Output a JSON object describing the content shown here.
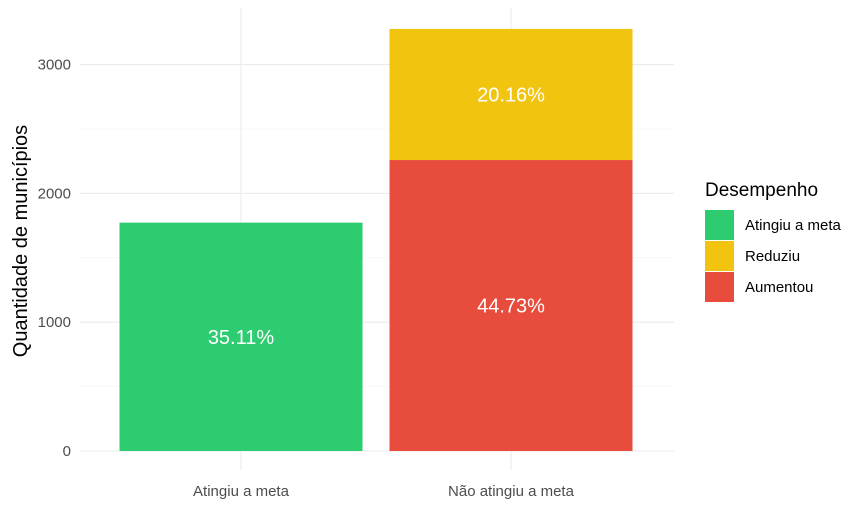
{
  "chart_data": {
    "type": "bar",
    "stacked": true,
    "categories": [
      "Atingiu a meta",
      "Não atingiu a meta"
    ],
    "series": [
      {
        "name": "Atingiu a meta",
        "color": "#2ECC71",
        "values": [
          1773,
          0
        ],
        "labels": [
          "35.11%",
          ""
        ]
      },
      {
        "name": "Aumentou",
        "color": "#E74C3C",
        "values": [
          0,
          2259
        ],
        "labels": [
          "",
          "44.73%"
        ]
      },
      {
        "name": "Reduziu",
        "color": "#F1C40F",
        "values": [
          0,
          1018
        ],
        "labels": [
          "",
          "20.16%"
        ]
      }
    ],
    "title": "",
    "xlabel": "",
    "ylabel": "Quantidade de municípios",
    "ylim": [
      0,
      3300
    ],
    "yticks": [
      0,
      1000,
      2000,
      3000
    ],
    "grid": true,
    "legend": {
      "title": "Desempenho",
      "placement": "right",
      "items": [
        {
          "label": "Atingiu a meta",
          "color": "#2ECC71"
        },
        {
          "label": "Reduziu",
          "color": "#F1C40F"
        },
        {
          "label": "Aumentou",
          "color": "#E74C3C"
        }
      ]
    }
  }
}
